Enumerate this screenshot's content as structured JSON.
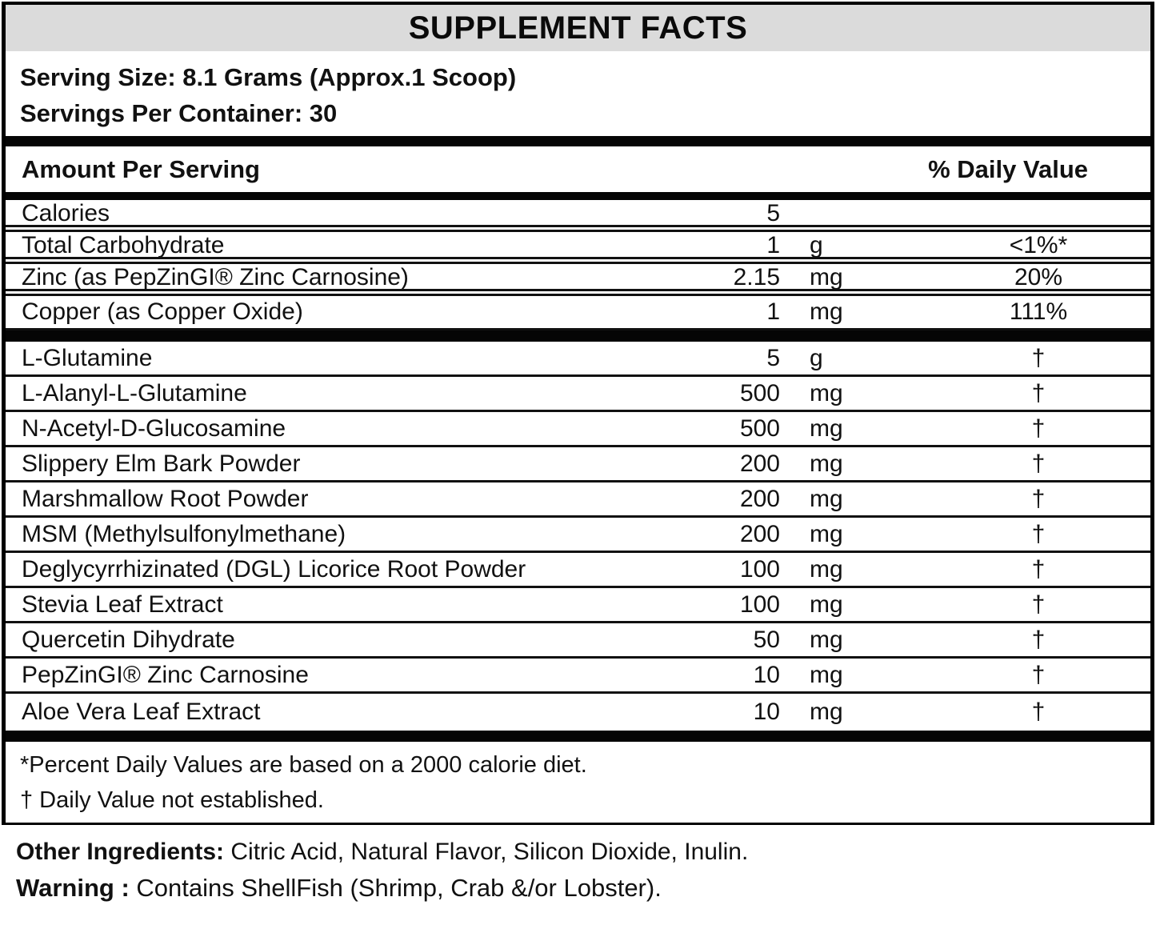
{
  "title": "SUPPLEMENT FACTS",
  "serving": {
    "size": "Serving Size: 8.1 Grams (Approx.1 Scoop)",
    "per_container": "Servings Per Container: 30"
  },
  "table": {
    "header": {
      "amount_per_serving": "Amount Per Serving",
      "daily_value": "% Daily Value"
    },
    "nutrients": [
      {
        "name": "Calories",
        "amount": "5",
        "unit": "",
        "dv": ""
      },
      {
        "name": "Total Carbohydrate",
        "amount": "1",
        "unit": "g",
        "dv": "<1%*"
      },
      {
        "name": "Zinc (as PepZinGI® Zinc Carnosine)",
        "amount": "2.15",
        "unit": "mg",
        "dv": "20%"
      },
      {
        "name": "Copper (as Copper Oxide)",
        "amount": "1",
        "unit": "mg",
        "dv": "111%"
      }
    ],
    "ingredients": [
      {
        "name": "L-Glutamine",
        "amount": "5",
        "unit": "g",
        "dv": "†"
      },
      {
        "name": "L-Alanyl-L-Glutamine",
        "amount": "500",
        "unit": "mg",
        "dv": "†"
      },
      {
        "name": "N-Acetyl-D-Glucosamine",
        "amount": "500",
        "unit": "mg",
        "dv": "†"
      },
      {
        "name": "Slippery Elm Bark Powder",
        "amount": "200",
        "unit": "mg",
        "dv": "†"
      },
      {
        "name": "Marshmallow Root Powder",
        "amount": "200",
        "unit": "mg",
        "dv": "†"
      },
      {
        "name": "MSM (Methylsulfonylmethane)",
        "amount": "200",
        "unit": "mg",
        "dv": "†"
      },
      {
        "name": "Deglycyrrhizinated (DGL) Licorice Root Powder",
        "amount": "100",
        "unit": "mg",
        "dv": "†"
      },
      {
        "name": "Stevia Leaf Extract",
        "amount": "100",
        "unit": "mg",
        "dv": "†"
      },
      {
        "name": "Quercetin Dihydrate",
        "amount": "50",
        "unit": "mg",
        "dv": "†"
      },
      {
        "name": "PepZinGI® Zinc Carnosine",
        "amount": "10",
        "unit": "mg",
        "dv": "†"
      },
      {
        "name": "Aloe Vera Leaf Extract",
        "amount": "10",
        "unit": "mg",
        "dv": "†"
      }
    ]
  },
  "footnotes": {
    "percent": "*Percent Daily Values are based on a 2000 calorie diet.",
    "dagger": "† Daily Value not established."
  },
  "other_ingredients": {
    "label": "Other Ingredients:",
    "text": " Citric Acid, Natural Flavor, Silicon Dioxide, Inulin."
  },
  "warning": {
    "label": "Warning :",
    "text": " Contains ShellFish (Shrimp, Crab &/or Lobster)."
  },
  "colors": {
    "title_bar_bg": "#dbdbdb",
    "line": "#111111",
    "text": "#111111"
  }
}
